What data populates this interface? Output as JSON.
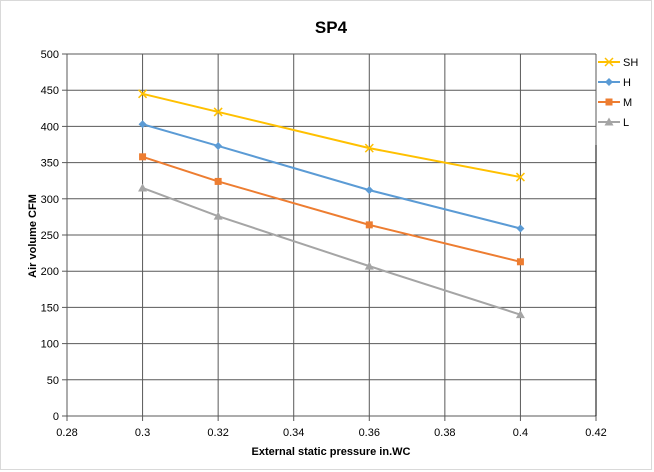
{
  "chart_data": {
    "type": "line",
    "title": "SP4",
    "xlabel": "External static pressure  in.WC",
    "ylabel": "Air volume CFM",
    "xlim": [
      0.28,
      0.42
    ],
    "ylim": [
      0,
      500
    ],
    "x_ticks": [
      "0.28",
      "0.3",
      "0.32",
      "0.34",
      "0.36",
      "0.38",
      "0.4",
      "0.42"
    ],
    "y_ticks": [
      "0",
      "50",
      "100",
      "150",
      "200",
      "250",
      "300",
      "350",
      "400",
      "450",
      "500"
    ],
    "x": [
      0.3,
      0.32,
      0.36,
      0.4
    ],
    "grid": true,
    "legend_position": "right",
    "series": [
      {
        "name": "SH",
        "color": "#ffc000",
        "marker": "x",
        "values": [
          445,
          420,
          370,
          330
        ]
      },
      {
        "name": "H",
        "color": "#5b9bd5",
        "marker": "diamond",
        "values": [
          403,
          373,
          312,
          259
        ]
      },
      {
        "name": "M",
        "color": "#ed7d31",
        "marker": "square",
        "values": [
          358,
          324,
          264,
          213
        ]
      },
      {
        "name": "L",
        "color": "#a5a5a5",
        "marker": "triangle",
        "values": [
          315,
          276,
          207,
          140
        ]
      }
    ]
  }
}
